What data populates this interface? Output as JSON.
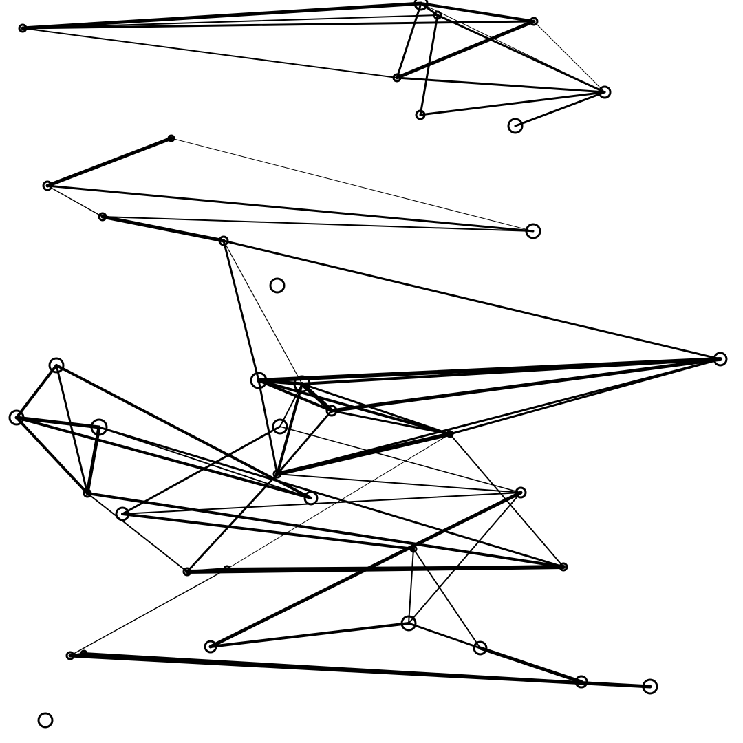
{
  "graph": {
    "background": "#ffffff",
    "stroke_color": "#000000",
    "node_count": 41,
    "edge_count": 76
  }
}
